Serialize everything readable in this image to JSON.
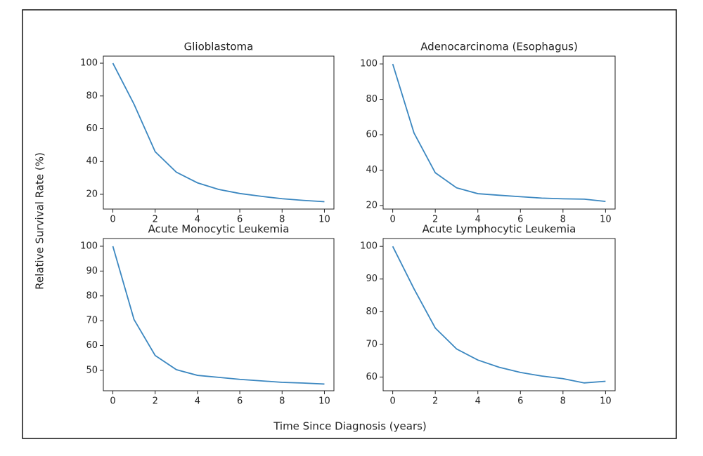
{
  "figure": {
    "x_label": "Time Since Diagnosis (years)",
    "y_label": "Relative Survival Rate (%)"
  },
  "chart_data": [
    {
      "type": "line",
      "title": "Glioblastoma",
      "x": [
        0,
        1,
        2,
        3,
        4,
        5,
        6,
        7,
        8,
        9,
        10
      ],
      "series": [
        {
          "color": "#3b87c0",
          "values": [
            100,
            75,
            46,
            33.5,
            27,
            23,
            20.5,
            18.8,
            17.3,
            16.3,
            15.5
          ]
        }
      ],
      "xlim": [
        -0.45,
        10.45
      ],
      "xticks": [
        0,
        2,
        4,
        6,
        8,
        10
      ],
      "ylim": [
        11,
        104.3
      ],
      "yticks": [
        20,
        40,
        60,
        80,
        100
      ]
    },
    {
      "type": "line",
      "title": "Adenocarcinoma (Esophagus)",
      "x": [
        0,
        1,
        2,
        3,
        4,
        5,
        6,
        7,
        8,
        9,
        10
      ],
      "series": [
        {
          "color": "#3b87c0",
          "values": [
            100,
            61,
            38.5,
            30,
            26.7,
            25.8,
            25,
            24.2,
            23.8,
            23.6,
            22.3
          ]
        }
      ],
      "xlim": [
        -0.45,
        10.45
      ],
      "xticks": [
        0,
        2,
        4,
        6,
        8,
        10
      ],
      "ylim": [
        18,
        104.4
      ],
      "yticks": [
        20,
        40,
        60,
        80,
        100
      ]
    },
    {
      "type": "line",
      "title": "Acute Monocytic Leukemia",
      "x": [
        0,
        1,
        2,
        3,
        4,
        5,
        6,
        7,
        8,
        9,
        10
      ],
      "series": [
        {
          "color": "#3b87c0",
          "values": [
            100,
            70.5,
            56,
            50.3,
            48,
            47.2,
            46.4,
            45.8,
            45.2,
            44.9,
            44.5
          ]
        }
      ],
      "xlim": [
        -0.45,
        10.45
      ],
      "xticks": [
        0,
        2,
        4,
        6,
        8,
        10
      ],
      "ylim": [
        41.8,
        103.1
      ],
      "yticks": [
        50,
        60,
        70,
        80,
        90,
        100
      ]
    },
    {
      "type": "line",
      "title": "Acute Lymphocytic Leukemia",
      "x": [
        0,
        1,
        2,
        3,
        4,
        5,
        6,
        7,
        8,
        9,
        10
      ],
      "series": [
        {
          "color": "#3b87c0",
          "values": [
            100,
            87,
            75,
            68.6,
            65.2,
            63,
            61.4,
            60.3,
            59.5,
            58.2,
            58.7
          ]
        }
      ],
      "xlim": [
        -0.45,
        10.45
      ],
      "xticks": [
        0,
        2,
        4,
        6,
        8,
        10
      ],
      "ylim": [
        55.8,
        102.4
      ],
      "yticks": [
        60,
        70,
        80,
        90,
        100
      ]
    }
  ]
}
